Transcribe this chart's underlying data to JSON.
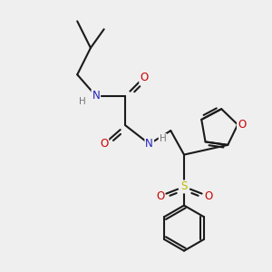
{
  "bg_color": "#efefef",
  "bond_color": "#1a1a1a",
  "bond_width": 1.5,
  "atom_colors": {
    "N": "#2222bb",
    "O": "#cc0000",
    "S": "#bbbb00",
    "C": "#1a1a1a",
    "H": "#777777"
  }
}
